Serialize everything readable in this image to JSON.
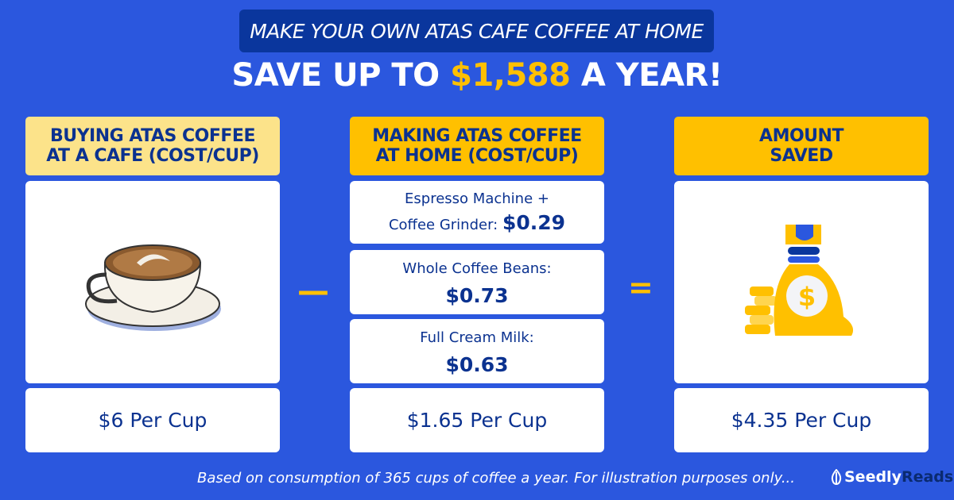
{
  "banner": "MAKE YOUR OWN ATAS CAFE COFFEE AT HOME",
  "title": {
    "pre": "SAVE UP TO ",
    "highlight": "$1,588",
    "post": " A YEAR!"
  },
  "columns": {
    "cafe": {
      "header_line1": "BUYING ATAS COFFEE",
      "header_line2": "AT A CAFE (COST/CUP)",
      "total": "$6 Per Cup",
      "icon": "latte-cup-icon"
    },
    "home": {
      "header_line1": "MAKING ATAS COFFEE",
      "header_line2": "AT HOME (COST/CUP)",
      "items": [
        {
          "label_line1": "Espresso Machine +",
          "label_line2": "Coffee Grinder: ",
          "value": "$0.29"
        },
        {
          "label": "Whole Coffee Beans:",
          "value": "$0.73"
        },
        {
          "label": "Full Cream Milk:",
          "value": "$0.63"
        }
      ],
      "total": "$1.65 Per Cup"
    },
    "saved": {
      "header_line1": "AMOUNT",
      "header_line2": "SAVED",
      "total": "$4.35 Per Cup",
      "icon": "money-bag-icon"
    }
  },
  "operators": {
    "minus": "—",
    "equals": "="
  },
  "footer": "Based on consumption of 365 cups of coffee a year. For illustration purposes only...",
  "logo": {
    "part1": "Seedly",
    "part2": "Reads"
  },
  "colors": {
    "background": "#2B57DE",
    "navy": "#0A369D",
    "yellow": "#FFC000",
    "light_yellow": "#FCE38A"
  }
}
